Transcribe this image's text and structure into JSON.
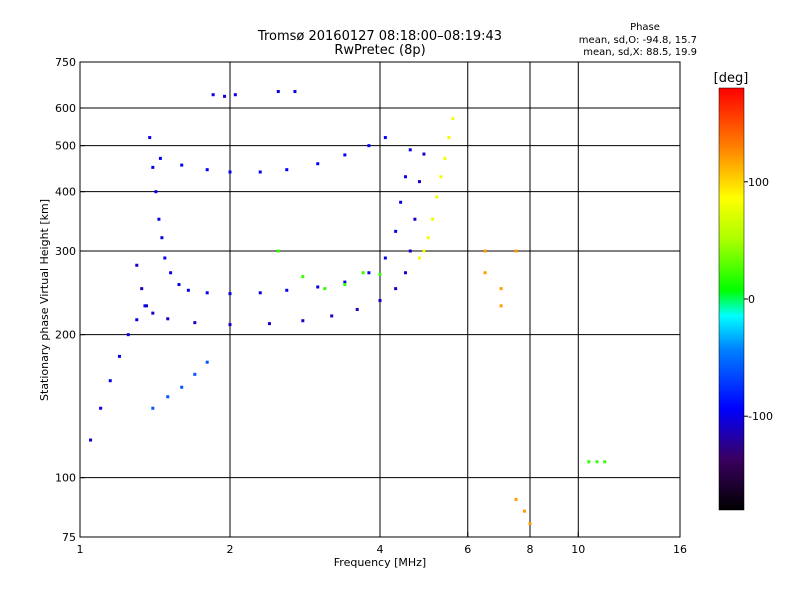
{
  "chart_data": {
    "type": "scatter",
    "title": "Tromsø 20160127 08:18:00–08:19:43",
    "subtitle": "RwPretec (8p)",
    "xlabel": "Frequency [MHz]",
    "ylabel": "Stationary phase Virtual Height [km]",
    "x_scale": "log",
    "y_scale": "log",
    "xlim": [
      1,
      16
    ],
    "ylim": [
      75,
      750
    ],
    "x_ticks": [
      1,
      2,
      4,
      6,
      8,
      10,
      16
    ],
    "x_tick_labels": [
      "1",
      "2",
      "4",
      "6",
      "8",
      "10",
      "16"
    ],
    "y_ticks": [
      75,
      100,
      200,
      300,
      400,
      500,
      600,
      750
    ],
    "y_tick_labels": [
      "75",
      "100",
      "200",
      "300",
      "400",
      "500",
      "600",
      "750"
    ],
    "grid": true,
    "phase_stats": {
      "title": "Phase",
      "o_line": "mean, sd,O: -94.8, 15.7",
      "x_line": "mean, sd,X: 88.5, 19.9"
    },
    "colorbar": {
      "label": "[deg]",
      "range": [
        -180,
        180
      ],
      "ticks": [
        100,
        0,
        -100
      ],
      "tick_labels": [
        "100",
        "0",
        "-100"
      ]
    },
    "traces": [
      {
        "name": "",
        "phase": -100,
        "points": [
          [
            1.38,
            520
          ],
          [
            1.4,
            450
          ],
          [
            1.42,
            400
          ],
          [
            1.44,
            350
          ],
          [
            1.46,
            320
          ],
          [
            1.48,
            290
          ],
          [
            1.52,
            270
          ],
          [
            1.58,
            255
          ],
          [
            1.65,
            248
          ],
          [
            1.8,
            245
          ],
          [
            2.0,
            244
          ],
          [
            2.3,
            245
          ],
          [
            2.6,
            248
          ],
          [
            3.0,
            252
          ],
          [
            3.4,
            258
          ],
          [
            3.8,
            270
          ],
          [
            4.1,
            290
          ],
          [
            4.3,
            330
          ],
          [
            4.4,
            380
          ],
          [
            4.5,
            430
          ],
          [
            4.6,
            490
          ]
        ]
      },
      {
        "name": "",
        "phase": -110,
        "points": [
          [
            1.3,
            280
          ],
          [
            1.33,
            250
          ],
          [
            1.36,
            230
          ],
          [
            1.4,
            222
          ],
          [
            1.5,
            216
          ],
          [
            1.7,
            212
          ],
          [
            2.0,
            210
          ],
          [
            2.4,
            211
          ],
          [
            2.8,
            214
          ],
          [
            3.2,
            219
          ],
          [
            3.6,
            226
          ],
          [
            4.0,
            236
          ],
          [
            4.3,
            250
          ],
          [
            4.5,
            270
          ],
          [
            4.6,
            300
          ],
          [
            4.7,
            350
          ],
          [
            4.8,
            420
          ],
          [
            4.9,
            480
          ]
        ]
      },
      {
        "name": "",
        "phase": -95,
        "points": [
          [
            1.45,
            470
          ],
          [
            1.6,
            455
          ],
          [
            1.8,
            445
          ],
          [
            2.0,
            440
          ],
          [
            2.3,
            440
          ],
          [
            2.6,
            445
          ],
          [
            3.0,
            458
          ],
          [
            3.4,
            478
          ],
          [
            3.8,
            500
          ],
          [
            4.1,
            520
          ]
        ]
      },
      {
        "name": "",
        "phase": 80,
        "points": [
          [
            4.8,
            290
          ],
          [
            4.9,
            300
          ],
          [
            5.0,
            320
          ],
          [
            5.1,
            350
          ],
          [
            5.2,
            390
          ],
          [
            5.3,
            430
          ],
          [
            5.4,
            470
          ],
          [
            5.5,
            520
          ],
          [
            5.6,
            570
          ]
        ]
      },
      {
        "name": "",
        "phase": 20,
        "points": [
          [
            2.5,
            300
          ],
          [
            2.8,
            265
          ],
          [
            3.1,
            250
          ],
          [
            3.4,
            255
          ],
          [
            3.7,
            270
          ],
          [
            4.0,
            268
          ]
        ]
      },
      {
        "name": "",
        "phase": -100,
        "points": [
          [
            1.05,
            120
          ],
          [
            1.1,
            140
          ],
          [
            1.15,
            160
          ],
          [
            1.2,
            180
          ],
          [
            1.25,
            200
          ],
          [
            1.3,
            215
          ],
          [
            1.35,
            230
          ]
        ]
      },
      {
        "name": "",
        "phase": -60,
        "points": [
          [
            1.4,
            140
          ],
          [
            1.5,
            148
          ],
          [
            1.6,
            155
          ],
          [
            1.7,
            165
          ],
          [
            1.8,
            175
          ]
        ]
      },
      {
        "name": "",
        "phase": -100,
        "points": [
          [
            1.85,
            640
          ],
          [
            1.95,
            635
          ],
          [
            2.05,
            640
          ],
          [
            2.5,
            650
          ],
          [
            2.7,
            650
          ]
        ]
      },
      {
        "name": "",
        "phase": 20,
        "points": [
          [
            10.5,
            108
          ],
          [
            10.9,
            108
          ],
          [
            11.3,
            108
          ]
        ]
      },
      {
        "name": "",
        "phase": 120,
        "points": [
          [
            6.5,
            300
          ],
          [
            6.5,
            270
          ],
          [
            7.0,
            250
          ],
          [
            7.0,
            230
          ],
          [
            7.5,
            300
          ],
          [
            7.5,
            90
          ],
          [
            7.8,
            85
          ],
          [
            8.0,
            80
          ]
        ]
      }
    ]
  }
}
